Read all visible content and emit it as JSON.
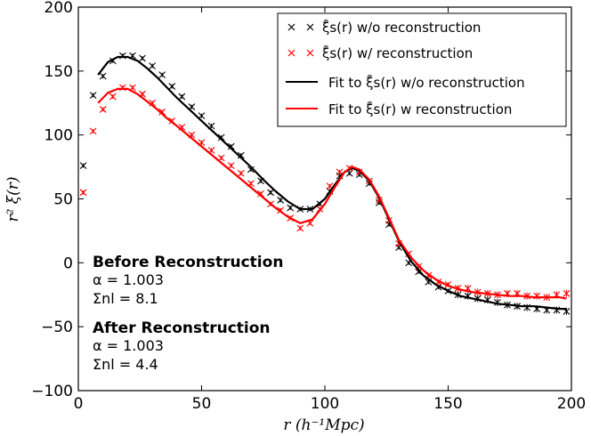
{
  "chart_data": {
    "type": "line",
    "xlabel": "r (h⁻¹Mpc)",
    "ylabel": "r² ξ(r)",
    "xlim": [
      0,
      200
    ],
    "ylim": [
      -100,
      200
    ],
    "xticks": [
      "0",
      "50",
      "100",
      "150",
      "200"
    ],
    "yticks": [
      "−100",
      "−50",
      "0",
      "50",
      "100",
      "150",
      "200"
    ],
    "grid": false,
    "legend_position": "top-right",
    "series": [
      {
        "name": "ξ̄s(r) w/o reconstruction",
        "kind": "scatter-errorbar",
        "color": "#000000",
        "x": [
          2,
          6,
          10,
          14,
          18,
          22,
          26,
          30,
          34,
          38,
          42,
          46,
          50,
          54,
          58,
          62,
          66,
          70,
          74,
          78,
          82,
          86,
          90,
          94,
          98,
          102,
          106,
          110,
          114,
          118,
          122,
          126,
          130,
          134,
          138,
          142,
          146,
          150,
          154,
          158,
          162,
          166,
          170,
          174,
          178,
          182,
          186,
          190,
          194,
          198
        ],
        "y": [
          76,
          131,
          146,
          158,
          162,
          162,
          160,
          154,
          147,
          138,
          130,
          122,
          115,
          107,
          98,
          91,
          84,
          73,
          64,
          55,
          49,
          43,
          42,
          42,
          46,
          56,
          68,
          70,
          69,
          62,
          47,
          30,
          12,
          0,
          -7,
          -15,
          -19,
          -22,
          -25,
          -26,
          -28,
          -29,
          -31,
          -33,
          -34,
          -35,
          -36,
          -37,
          -37,
          -38
        ]
      },
      {
        "name": "ξ̄s(r) w/ reconstruction",
        "kind": "scatter-errorbar",
        "color": "#ff0000",
        "x": [
          2,
          6,
          10,
          14,
          18,
          22,
          26,
          30,
          34,
          38,
          42,
          46,
          50,
          54,
          58,
          62,
          66,
          70,
          74,
          78,
          82,
          86,
          90,
          94,
          98,
          102,
          106,
          110,
          114,
          118,
          122,
          126,
          130,
          134,
          138,
          142,
          146,
          150,
          154,
          158,
          162,
          166,
          170,
          174,
          178,
          182,
          186,
          190,
          194,
          198
        ],
        "y": [
          55,
          103,
          120,
          130,
          137,
          137,
          132,
          125,
          118,
          111,
          106,
          100,
          94,
          88,
          82,
          76,
          70,
          62,
          54,
          46,
          41,
          35,
          27,
          31,
          42,
          60,
          71,
          74,
          71,
          64,
          49,
          33,
          15,
          7,
          -3,
          -10,
          -15,
          -17,
          -20,
          -20,
          -23,
          -24,
          -25,
          -24,
          -24,
          -26,
          -26,
          -27,
          -25,
          -24
        ]
      },
      {
        "name": "Fit to ξ̄s(r) w/o reconstruction",
        "kind": "line",
        "color": "#000000",
        "x": [
          8,
          12,
          16,
          20,
          24,
          28,
          32,
          36,
          40,
          45,
          50,
          55,
          60,
          65,
          70,
          75,
          80,
          85,
          90,
          95,
          100,
          104,
          108,
          111,
          114,
          118,
          122,
          126,
          130,
          135,
          140,
          145,
          150,
          155,
          160,
          165,
          170,
          175,
          180,
          185,
          190,
          195,
          198
        ],
        "y": [
          147,
          157,
          161,
          161,
          158,
          152,
          145,
          137,
          129,
          120,
          111,
          102,
          93,
          84,
          75,
          65,
          56,
          48,
          42,
          42,
          50,
          61,
          71,
          74,
          72,
          64,
          51,
          34,
          17,
          1,
          -10,
          -17,
          -22,
          -26,
          -28,
          -30,
          -32,
          -33,
          -34,
          -34,
          -35,
          -36,
          -36
        ]
      },
      {
        "name": "Fit to ξ̄s(r) w reconstruction",
        "kind": "line",
        "color": "#ff0000",
        "x": [
          8,
          12,
          16,
          20,
          24,
          28,
          32,
          36,
          40,
          45,
          50,
          55,
          60,
          65,
          70,
          75,
          80,
          85,
          90,
          95,
          100,
          104,
          108,
          111,
          114,
          118,
          122,
          126,
          130,
          135,
          140,
          145,
          150,
          155,
          160,
          165,
          170,
          175,
          180,
          185,
          190,
          195,
          198
        ],
        "y": [
          125,
          133,
          136,
          136,
          132,
          126,
          120,
          113,
          107,
          99,
          91,
          83,
          75,
          67,
          59,
          51,
          43,
          36,
          31,
          34,
          46,
          59,
          71,
          75,
          73,
          65,
          52,
          35,
          18,
          4,
          -6,
          -13,
          -18,
          -21,
          -23,
          -24,
          -25,
          -26,
          -26,
          -27,
          -27,
          -27,
          -28
        ]
      }
    ],
    "annotations": [
      {
        "heading": "Before Reconstruction",
        "lines": [
          "α = 1.003",
          "Σnl = 8.1"
        ]
      },
      {
        "heading": "After Reconstruction",
        "lines": [
          "α = 1.003",
          "Σnl = 4.4"
        ]
      }
    ]
  },
  "legend": {
    "item1": "ξ̄s(r) w/o reconstruction",
    "item2": "ξ̄s(r) w/ reconstruction",
    "item3": "Fit to ξ̄s(r) w/o reconstruction",
    "item4": "Fit to ξ̄s(r) w reconstruction"
  },
  "axes": {
    "xlabel": "r (h⁻¹Mpc)",
    "ylabel": "r² ξ(r)"
  },
  "ann": {
    "before_head": "Before Reconstruction",
    "before_alpha": "α = 1.003",
    "before_sigma": "Σnl = 8.1",
    "after_head": "After Reconstruction",
    "after_alpha": "α = 1.003",
    "after_sigma": "Σnl = 4.4"
  },
  "colors": {
    "black": "#000000",
    "red": "#ff0000"
  }
}
